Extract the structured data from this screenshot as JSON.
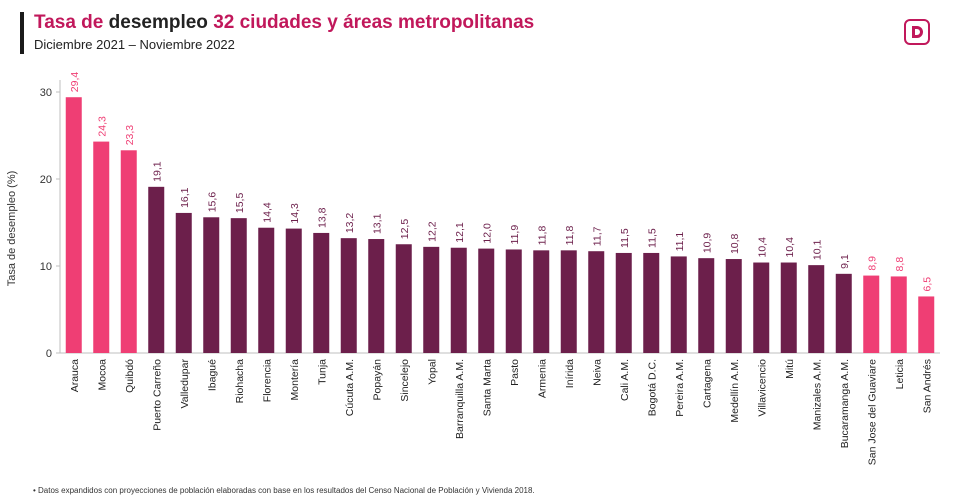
{
  "header": {
    "title_part1": "Tasa de ",
    "title_part2": "desempleo ",
    "title_part3": "32 ciudades y áreas metropolitanas",
    "subtitle": "Diciembre 2021 – Noviembre 2022"
  },
  "logo": {
    "icon": "d-logo-icon",
    "color": "#c1185b"
  },
  "footnote": "• Datos expandidos con proyecciones de población elaboradas con base en los resultados del Censo Nacional de Población y Vivienda 2018.",
  "colors": {
    "dark": "#6c1f4b",
    "highlight": "#ef3e74",
    "label_dark": "#6c1f4b",
    "label_highlight": "#ef3e74"
  },
  "chart_data": {
    "type": "bar",
    "title": "",
    "xlabel": "",
    "ylabel": "Tasa de desempleo (%)",
    "ylim": [
      0,
      30
    ],
    "yticks": [
      0,
      10,
      20,
      30
    ],
    "grid": false,
    "categories": [
      "Arauca",
      "Mocoa",
      "Quibdó",
      "Puerto Carreño",
      "Valledupar",
      "Ibagué",
      "Riohacha",
      "Florencia",
      "Montería",
      "Tunja",
      "Cúcuta A.M.",
      "Popayán",
      "Sincelejo",
      "Yopal",
      "Barranquilla A.M.",
      "Santa Marta",
      "Pasto",
      "Armenia",
      "Inírida",
      "Neiva",
      "Cali A.M.",
      "Bogotá D.C.",
      "Pereira A.M.",
      "Cartagena",
      "Medellín A.M.",
      "Villavicencio",
      "Mitú",
      "Manizales A.M.",
      "Bucaramanga A.M.",
      "San Jose del Guaviare",
      "Leticia",
      "San Andrés"
    ],
    "values": [
      29.4,
      24.3,
      23.3,
      19.1,
      16.1,
      15.6,
      15.5,
      14.4,
      14.3,
      13.8,
      13.2,
      13.1,
      12.5,
      12.2,
      12.1,
      12.0,
      11.9,
      11.8,
      11.8,
      11.7,
      11.5,
      11.5,
      11.1,
      10.9,
      10.8,
      10.4,
      10.4,
      10.1,
      9.1,
      8.9,
      8.8,
      6.5
    ],
    "value_labels": [
      "29,4",
      "24,3",
      "23,3",
      "19,1",
      "16,1",
      "15,6",
      "15,5",
      "14,4",
      "14,3",
      "13,8",
      "13,2",
      "13,1",
      "12,5",
      "12,2",
      "12,1",
      "12,0",
      "11,9",
      "11,8",
      "11,8",
      "11,7",
      "11,5",
      "11,5",
      "11,1",
      "10,9",
      "10,8",
      "10,4",
      "10,4",
      "10,1",
      "9,1",
      "8,9",
      "8,8",
      "6,5"
    ],
    "highlighted": [
      true,
      true,
      true,
      false,
      false,
      false,
      false,
      false,
      false,
      false,
      false,
      false,
      false,
      false,
      false,
      false,
      false,
      false,
      false,
      false,
      false,
      false,
      false,
      false,
      false,
      false,
      false,
      false,
      false,
      true,
      true,
      true
    ]
  }
}
